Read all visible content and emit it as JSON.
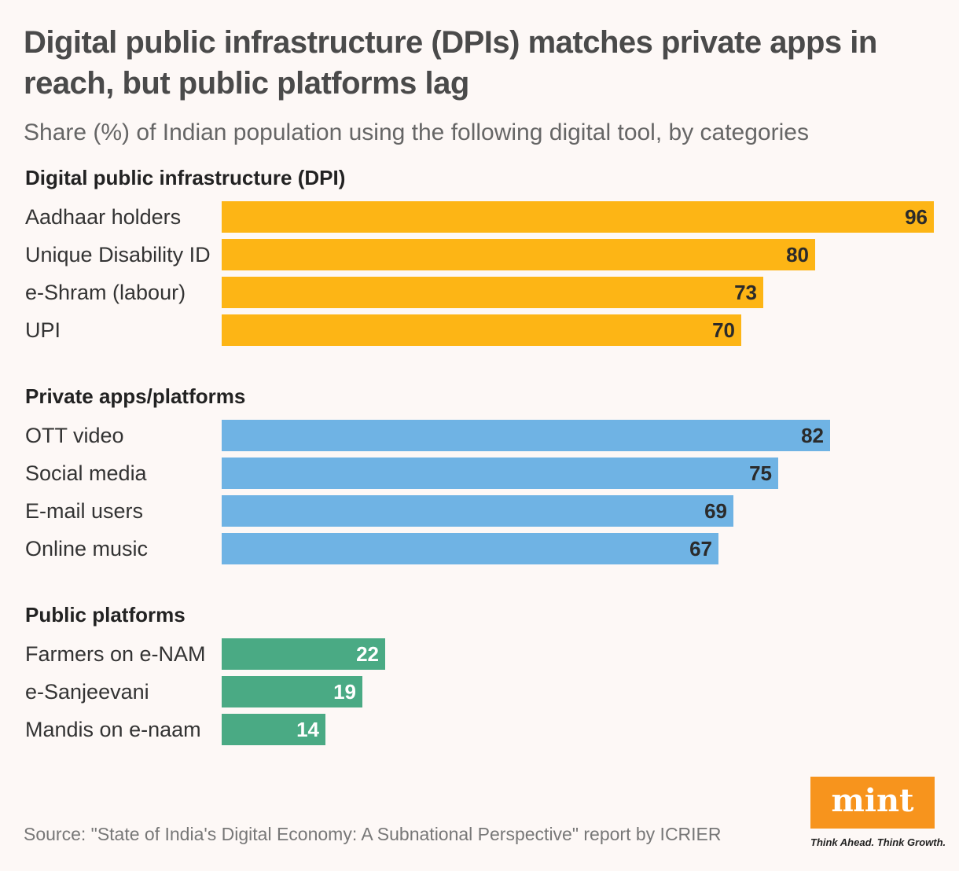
{
  "title": "Digital public infrastructure (DPIs) matches private apps in reach, but public platforms lag",
  "subtitle": "Share (%) of Indian population using the following digital tool, by categories",
  "source": "Source: \"State of India's Digital Economy: A Subnational Perspective\" report by ICRIER",
  "logo": {
    "text": "mint",
    "tagline": "Think Ahead. Think Growth.",
    "color": "#f7941d"
  },
  "chart_data": {
    "type": "bar",
    "orientation": "horizontal",
    "xlim": [
      0,
      96
    ],
    "groups": [
      {
        "name": "Digital public infrastructure (DPI)",
        "color": "#fdb515",
        "categories": [
          "Aadhaar holders",
          "Unique Disability ID",
          "e-Shram (labour)",
          "UPI"
        ],
        "values": [
          96,
          80,
          73,
          70
        ]
      },
      {
        "name": "Private apps/platforms",
        "color": "#6fb3e4",
        "categories": [
          "OTT video",
          "Social media",
          "E-mail users",
          "Online music"
        ],
        "values": [
          82,
          75,
          69,
          67
        ]
      },
      {
        "name": "Public platforms",
        "color": "#4aaa84",
        "categories": [
          "Farmers on e-NAM",
          "e-Sanjeevani",
          "Mandis on e-naam"
        ],
        "values": [
          22,
          19,
          14
        ]
      }
    ]
  }
}
